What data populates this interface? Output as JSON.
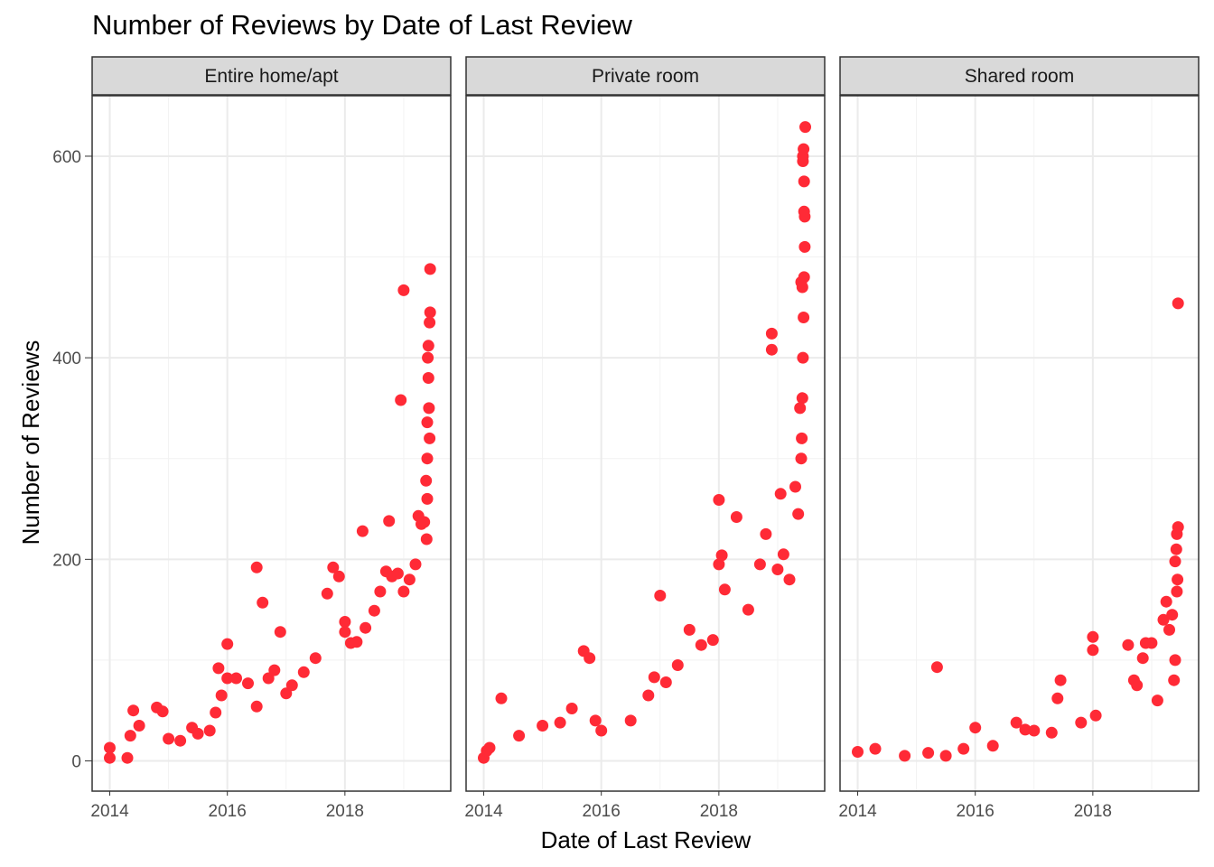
{
  "chart_data": {
    "type": "scatter",
    "title": "Number of Reviews by Date of Last Review",
    "xlabel": "Date of Last Review",
    "ylabel": "Number of Reviews",
    "x_ticks": [
      "2014",
      "2016",
      "2018"
    ],
    "y_ticks": [
      "0",
      "200",
      "400",
      "600"
    ],
    "xlim": [
      2013.7,
      2019.8
    ],
    "ylim": [
      -30,
      660
    ],
    "grid": true,
    "point_color": "#FF2A36",
    "panels": [
      {
        "name": "Entire home/apt",
        "points": [
          [
            2014.0,
            13
          ],
          [
            2014.0,
            3
          ],
          [
            2014.3,
            3
          ],
          [
            2014.35,
            25
          ],
          [
            2014.4,
            50
          ],
          [
            2014.5,
            35
          ],
          [
            2014.8,
            53
          ],
          [
            2014.9,
            49
          ],
          [
            2015.0,
            22
          ],
          [
            2015.2,
            20
          ],
          [
            2015.4,
            33
          ],
          [
            2015.5,
            27
          ],
          [
            2015.7,
            30
          ],
          [
            2015.8,
            48
          ],
          [
            2015.9,
            65
          ],
          [
            2015.85,
            92
          ],
          [
            2016.0,
            82
          ],
          [
            2016.0,
            116
          ],
          [
            2016.15,
            82
          ],
          [
            2016.35,
            77
          ],
          [
            2016.5,
            54
          ],
          [
            2016.5,
            192
          ],
          [
            2016.6,
            157
          ],
          [
            2016.7,
            82
          ],
          [
            2016.8,
            90
          ],
          [
            2016.9,
            128
          ],
          [
            2017.0,
            67
          ],
          [
            2017.1,
            75
          ],
          [
            2017.3,
            88
          ],
          [
            2017.5,
            102
          ],
          [
            2017.7,
            166
          ],
          [
            2017.8,
            192
          ],
          [
            2017.9,
            183
          ],
          [
            2018.0,
            138
          ],
          [
            2018.0,
            128
          ],
          [
            2018.1,
            117
          ],
          [
            2018.2,
            118
          ],
          [
            2018.3,
            228
          ],
          [
            2018.35,
            132
          ],
          [
            2018.5,
            149
          ],
          [
            2018.6,
            168
          ],
          [
            2018.7,
            188
          ],
          [
            2018.75,
            238
          ],
          [
            2018.8,
            183
          ],
          [
            2018.9,
            186
          ],
          [
            2018.95,
            358
          ],
          [
            2019.0,
            467
          ],
          [
            2019.0,
            168
          ],
          [
            2019.1,
            180
          ],
          [
            2019.2,
            195
          ],
          [
            2019.25,
            243
          ],
          [
            2019.3,
            235
          ],
          [
            2019.35,
            237
          ],
          [
            2019.38,
            278
          ],
          [
            2019.4,
            300
          ],
          [
            2019.4,
            336
          ],
          [
            2019.42,
            380
          ],
          [
            2019.42,
            412
          ],
          [
            2019.44,
            435
          ],
          [
            2019.45,
            488
          ],
          [
            2019.45,
            445
          ],
          [
            2019.4,
            260
          ],
          [
            2019.43,
            350
          ],
          [
            2019.41,
            400
          ],
          [
            2019.39,
            220
          ],
          [
            2019.44,
            320
          ]
        ]
      },
      {
        "name": "Private room",
        "points": [
          [
            2014.0,
            3
          ],
          [
            2014.05,
            10
          ],
          [
            2014.1,
            13
          ],
          [
            2014.3,
            62
          ],
          [
            2014.6,
            25
          ],
          [
            2015.0,
            35
          ],
          [
            2015.3,
            38
          ],
          [
            2015.5,
            52
          ],
          [
            2015.7,
            109
          ],
          [
            2015.8,
            102
          ],
          [
            2015.9,
            40
          ],
          [
            2016.0,
            30
          ],
          [
            2016.5,
            40
          ],
          [
            2016.8,
            65
          ],
          [
            2016.9,
            83
          ],
          [
            2017.0,
            164
          ],
          [
            2017.1,
            78
          ],
          [
            2017.3,
            95
          ],
          [
            2017.5,
            130
          ],
          [
            2017.7,
            115
          ],
          [
            2017.9,
            120
          ],
          [
            2018.0,
            259
          ],
          [
            2018.0,
            195
          ],
          [
            2018.05,
            204
          ],
          [
            2018.1,
            170
          ],
          [
            2018.3,
            242
          ],
          [
            2018.5,
            150
          ],
          [
            2018.7,
            195
          ],
          [
            2018.8,
            225
          ],
          [
            2018.9,
            424
          ],
          [
            2018.9,
            408
          ],
          [
            2019.0,
            190
          ],
          [
            2019.05,
            265
          ],
          [
            2019.1,
            205
          ],
          [
            2019.2,
            180
          ],
          [
            2019.3,
            272
          ],
          [
            2019.35,
            245
          ],
          [
            2019.38,
            350
          ],
          [
            2019.4,
            475
          ],
          [
            2019.42,
            470
          ],
          [
            2019.43,
            595
          ],
          [
            2019.43,
            600
          ],
          [
            2019.44,
            607
          ],
          [
            2019.45,
            575
          ],
          [
            2019.45,
            545
          ],
          [
            2019.46,
            540
          ],
          [
            2019.46,
            510
          ],
          [
            2019.47,
            629
          ],
          [
            2019.45,
            480
          ],
          [
            2019.44,
            440
          ],
          [
            2019.43,
            400
          ],
          [
            2019.42,
            360
          ],
          [
            2019.41,
            320
          ],
          [
            2019.4,
            300
          ]
        ]
      },
      {
        "name": "Shared room",
        "points": [
          [
            2014.0,
            9
          ],
          [
            2014.3,
            12
          ],
          [
            2014.8,
            5
          ],
          [
            2015.2,
            8
          ],
          [
            2015.35,
            93
          ],
          [
            2015.5,
            5
          ],
          [
            2015.8,
            12
          ],
          [
            2016.0,
            33
          ],
          [
            2016.3,
            15
          ],
          [
            2016.7,
            38
          ],
          [
            2016.85,
            31
          ],
          [
            2017.0,
            30
          ],
          [
            2017.3,
            28
          ],
          [
            2017.4,
            62
          ],
          [
            2017.45,
            80
          ],
          [
            2017.8,
            38
          ],
          [
            2018.0,
            123
          ],
          [
            2018.0,
            110
          ],
          [
            2018.05,
            45
          ],
          [
            2018.6,
            115
          ],
          [
            2018.7,
            80
          ],
          [
            2018.75,
            75
          ],
          [
            2018.85,
            102
          ],
          [
            2018.9,
            117
          ],
          [
            2019.0,
            117
          ],
          [
            2019.1,
            60
          ],
          [
            2019.2,
            140
          ],
          [
            2019.25,
            158
          ],
          [
            2019.3,
            130
          ],
          [
            2019.35,
            145
          ],
          [
            2019.4,
            198
          ],
          [
            2019.42,
            210
          ],
          [
            2019.43,
            225
          ],
          [
            2019.45,
            232
          ],
          [
            2019.45,
            454
          ],
          [
            2019.44,
            180
          ],
          [
            2019.43,
            168
          ],
          [
            2019.4,
            100
          ],
          [
            2019.38,
            80
          ]
        ]
      }
    ]
  }
}
